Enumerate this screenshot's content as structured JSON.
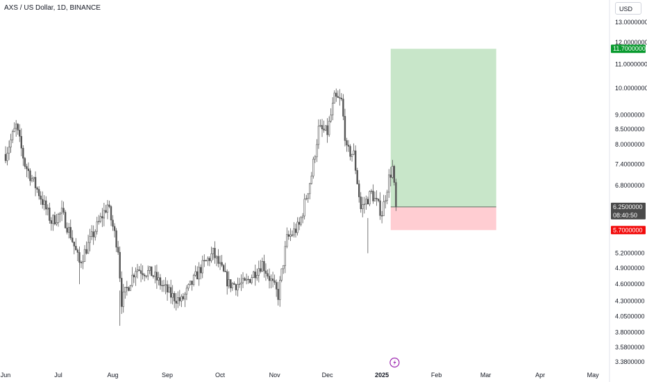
{
  "header": {
    "title": "AXS / US Dollar, 1D, BINANCE"
  },
  "currency_button": {
    "label": "USD"
  },
  "colors": {
    "candle": "#555555",
    "target_zone": "#c8e6c9",
    "stop_zone": "#ffcdd2",
    "target_tag": "#089a2e",
    "stop_tag": "#f20c0c",
    "price_tag": "#4a4a4a",
    "entry_line": "#5d7062",
    "event_icon": "#9c27b0"
  },
  "chart_data": {
    "type": "candlestick",
    "title": "AXS / US Dollar, 1D, BINANCE",
    "y_axis": {
      "scale": "log",
      "ticks": [
        13.0,
        12.0,
        11.0,
        10.0,
        9.0,
        8.5,
        8.0,
        7.4,
        6.8,
        6.25,
        6.0,
        5.7,
        5.2,
        4.9,
        4.6,
        4.3,
        4.05,
        3.8,
        3.58,
        3.38
      ],
      "tick_labels": [
        "13.0000000",
        "12.0000000",
        "11.0000000",
        "10.0000000",
        "9.0000000",
        "8.5000000",
        "8.0000000",
        "7.4000000",
        "6.8000000",
        "6.2500000",
        "6.0000000",
        "5.7000000",
        "5.2000000",
        "4.9000000",
        "4.6000000",
        "4.3000000",
        "4.0500000",
        "3.8000000",
        "3.5800000",
        "3.3800000"
      ]
    },
    "x_axis": {
      "ticks": [
        "Jun",
        "Jul",
        "Aug",
        "Sep",
        "Oct",
        "Nov",
        "Dec",
        "2025",
        "Feb",
        "Mar",
        "Apr",
        "May"
      ]
    },
    "series_anchor_points": [
      {
        "date": "2024-06-01",
        "close": 7.7
      },
      {
        "date": "2024-06-07",
        "close": 8.6
      },
      {
        "date": "2024-06-12",
        "close": 7.4
      },
      {
        "date": "2024-06-20",
        "close": 6.6
      },
      {
        "date": "2024-06-27",
        "close": 5.9
      },
      {
        "date": "2024-07-03",
        "close": 6.1
      },
      {
        "date": "2024-07-08",
        "close": 5.6
      },
      {
        "date": "2024-07-13",
        "close": 5.0
      },
      {
        "date": "2024-07-22",
        "close": 5.7
      },
      {
        "date": "2024-07-29",
        "close": 6.3
      },
      {
        "date": "2024-08-04",
        "close": 5.3
      },
      {
        "date": "2024-08-06",
        "close": 4.3
      },
      {
        "date": "2024-08-14",
        "close": 4.9
      },
      {
        "date": "2024-08-23",
        "close": 4.8
      },
      {
        "date": "2024-09-03",
        "close": 4.4
      },
      {
        "date": "2024-09-09",
        "close": 4.3
      },
      {
        "date": "2024-09-20",
        "close": 4.9
      },
      {
        "date": "2024-09-27",
        "close": 5.2
      },
      {
        "date": "2024-10-06",
        "close": 4.6
      },
      {
        "date": "2024-10-15",
        "close": 4.6
      },
      {
        "date": "2024-10-25",
        "close": 5.0
      },
      {
        "date": "2024-11-03",
        "close": 4.4
      },
      {
        "date": "2024-11-08",
        "close": 5.5
      },
      {
        "date": "2024-11-15",
        "close": 5.8
      },
      {
        "date": "2024-11-22",
        "close": 7.1
      },
      {
        "date": "2024-11-26",
        "close": 8.5
      },
      {
        "date": "2024-12-01",
        "close": 8.4
      },
      {
        "date": "2024-12-05",
        "close": 9.6
      },
      {
        "date": "2024-12-09",
        "close": 9.5
      },
      {
        "date": "2024-12-12",
        "close": 7.8
      },
      {
        "date": "2024-12-16",
        "close": 7.7
      },
      {
        "date": "2024-12-20",
        "close": 6.2
      },
      {
        "date": "2024-12-26",
        "close": 6.6
      },
      {
        "date": "2025-01-01",
        "close": 6.1
      },
      {
        "date": "2025-01-05",
        "close": 7.0
      },
      {
        "date": "2025-01-07",
        "close": 7.3
      },
      {
        "date": "2025-01-09",
        "close": 6.25
      }
    ],
    "position": {
      "type": "long",
      "entry": 6.25,
      "target": 11.7,
      "stop": 5.7
    },
    "tags": {
      "target": "11.7000000",
      "current": "6.2500000",
      "countdown": "08:40:50",
      "stop": "5.7000000"
    },
    "grid": false
  }
}
